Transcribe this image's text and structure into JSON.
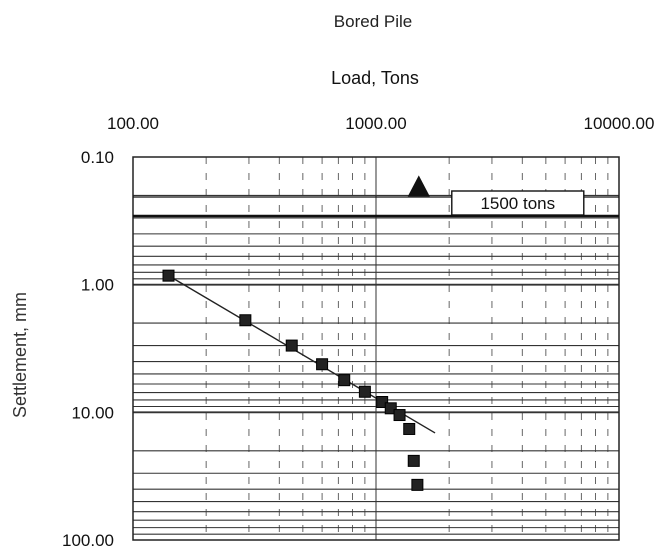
{
  "chart_data": {
    "type": "scatter",
    "title": "Bored Pile",
    "xlabel": "Load, Tons",
    "ylabel": "Settlement, mm",
    "x_scale": "log",
    "y_scale": "log",
    "y_inverted": true,
    "xlim": [
      100,
      10000
    ],
    "ylim": [
      0.1,
      100
    ],
    "x_ticks": [
      "100.00",
      "1000.00",
      "10000.00"
    ],
    "y_ticks": [
      "0.10",
      "1.00",
      "10.00",
      "100.00"
    ],
    "grid": true,
    "series": [
      {
        "points": [
          {
            "x": 140,
            "y": 0.85
          },
          {
            "x": 290,
            "y": 1.9
          },
          {
            "x": 450,
            "y": 3.0
          },
          {
            "x": 600,
            "y": 4.2
          },
          {
            "x": 740,
            "y": 5.6
          },
          {
            "x": 900,
            "y": 6.9
          },
          {
            "x": 1060,
            "y": 8.3
          },
          {
            "x": 1150,
            "y": 9.3
          },
          {
            "x": 1250,
            "y": 10.5
          },
          {
            "x": 1370,
            "y": 13.5
          },
          {
            "x": 1430,
            "y": 24
          },
          {
            "x": 1480,
            "y": 37
          }
        ]
      }
    ],
    "trend_line": {
      "x": [
        140,
        1750
      ],
      "y": [
        0.85,
        14.5
      ]
    },
    "marker": {
      "type": "triangle",
      "x": 1500,
      "y": 0.17,
      "label": "1500 tons"
    }
  }
}
